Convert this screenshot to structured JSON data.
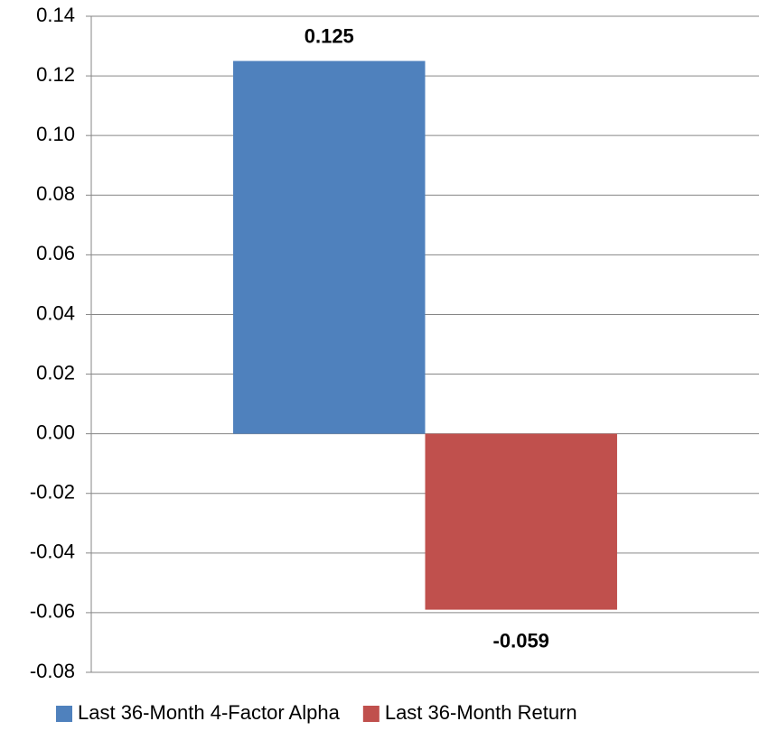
{
  "chart_data": {
    "type": "bar",
    "categories": [
      null
    ],
    "series": [
      {
        "name": "Last 36-Month 4-Factor Alpha",
        "color": "#4f81bd",
        "values": [
          0.125
        ]
      },
      {
        "name": "Last 36-Month Return",
        "color": "#c0504d",
        "values": [
          -0.059
        ]
      }
    ],
    "ylim": [
      -0.08,
      0.14
    ],
    "yticks": [
      -0.08,
      -0.06,
      -0.04,
      -0.02,
      {
        "value": 0,
        "label": "0.00"
      },
      0.02,
      0.04,
      0.06,
      0.08,
      {
        "value": 0.1,
        "label": "0.10"
      },
      0.12,
      0.14
    ],
    "grid": true,
    "legend": "bottom"
  }
}
